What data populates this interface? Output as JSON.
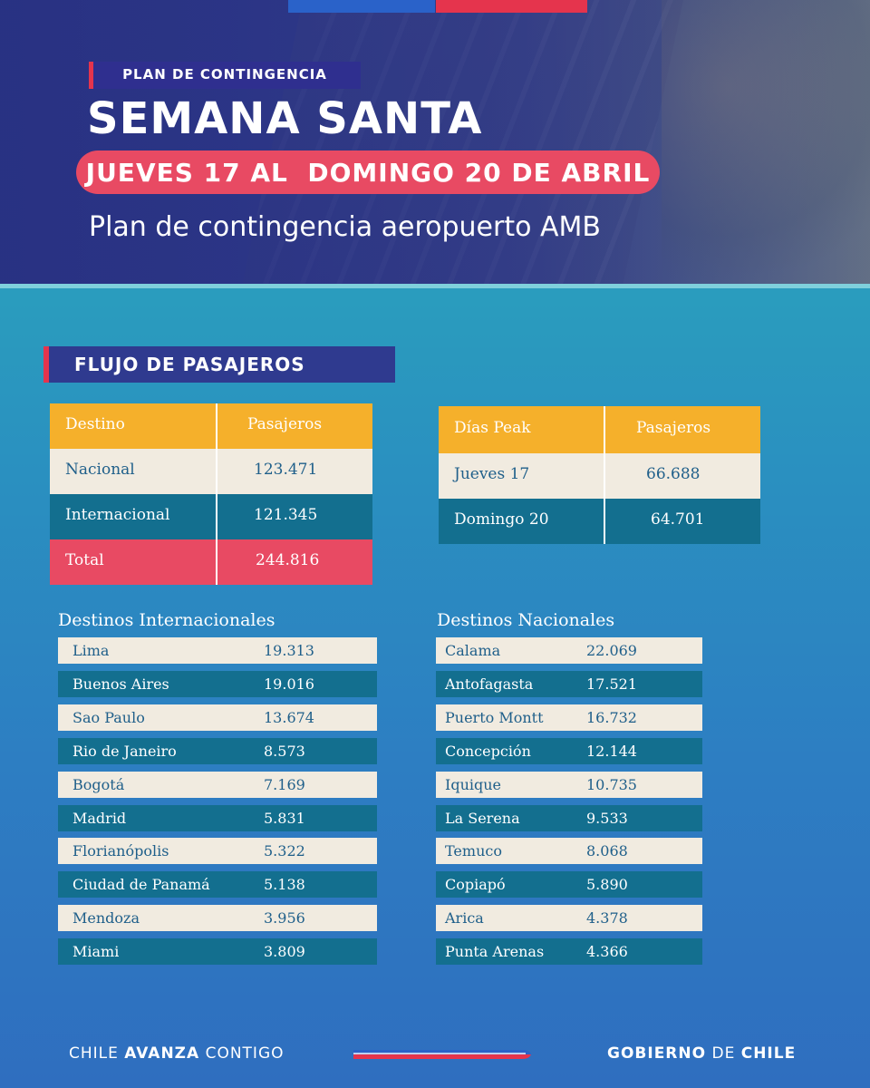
{
  "header": {
    "tag": "PLAN DE CONTINGENCIA",
    "title": "SEMANA SANTA",
    "dates": "JUEVES 17 AL  DOMINGO 20 DE ABRIL",
    "subtitle": "Plan de contingencia aeropuerto AMB"
  },
  "section": {
    "title": "FLUJO DE PASAJEROS"
  },
  "summary_table": {
    "headers": [
      "Destino",
      "Pasajeros"
    ],
    "rows": [
      {
        "label": "Nacional",
        "value": "123.471"
      },
      {
        "label": "Internacional",
        "value": "121.345"
      },
      {
        "label": "Total",
        "value": "244.816"
      }
    ]
  },
  "peak_table": {
    "headers": [
      "Días Peak",
      "Pasajeros"
    ],
    "rows": [
      {
        "label": "Jueves 17",
        "value": "66.688"
      },
      {
        "label": "Domingo 20",
        "value": "64.701"
      }
    ]
  },
  "international": {
    "title": "Destinos Internacionales",
    "items": [
      {
        "name": "Lima",
        "value": "19.313"
      },
      {
        "name": "Buenos Aires",
        "value": "19.016"
      },
      {
        "name": "Sao Paulo",
        "value": "13.674"
      },
      {
        "name": "Rio de Janeiro",
        "value": "8.573"
      },
      {
        "name": "Bogotá",
        "value": "7.169"
      },
      {
        "name": "Madrid",
        "value": "5.831"
      },
      {
        "name": "Florianópolis",
        "value": "5.322"
      },
      {
        "name": "Ciudad de Panamá",
        "value": "5.138"
      },
      {
        "name": "Mendoza",
        "value": "3.956"
      },
      {
        "name": "Miami",
        "value": "3.809"
      }
    ]
  },
  "national": {
    "title": "Destinos Nacionales",
    "items": [
      {
        "name": "Calama",
        "value": "22.069"
      },
      {
        "name": "Antofagasta",
        "value": "17.521"
      },
      {
        "name": "Puerto Montt",
        "value": "16.732"
      },
      {
        "name": "Concepción",
        "value": "12.144"
      },
      {
        "name": "Iquique",
        "value": "10.735"
      },
      {
        "name": "La Serena",
        "value": "9.533"
      },
      {
        "name": "Temuco",
        "value": "8.068"
      },
      {
        "name": "Copiapó",
        "value": "5.890"
      },
      {
        "name": "Arica",
        "value": "4.378"
      },
      {
        "name": "Punta Arenas",
        "value": "4.366"
      }
    ]
  },
  "footer": {
    "left_prefix": "CHILE ",
    "left_bold": "AVANZA",
    "left_suffix": " CONTIGO",
    "right_bold1": "GOBIERNO",
    "right_mid": " DE ",
    "right_bold2": "CHILE"
  },
  "colors": {
    "navy": "#2f3a8f",
    "red": "#e84a63",
    "yellow": "#f5b02b",
    "cream": "#f1ebe0",
    "teal": "#136f8f",
    "blue_flag": "#2a62c9"
  }
}
